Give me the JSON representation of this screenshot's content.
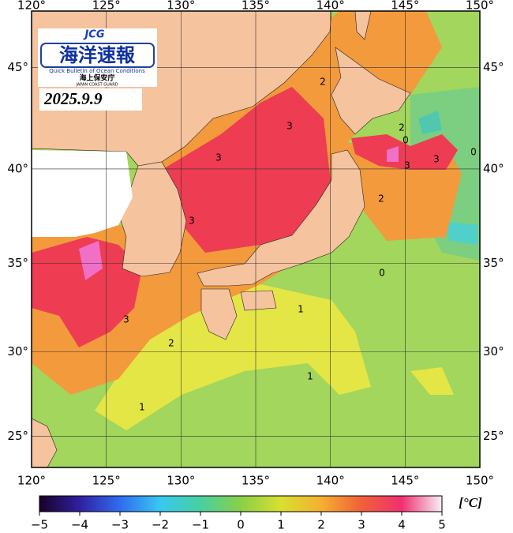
{
  "header": {
    "logo_mark": "JCG",
    "logo_title": "海洋速報",
    "logo_subtitle": "Quick Bulletin of Ocean Conditions",
    "logo_agency": "海上保安庁",
    "logo_agency_en": "JAPAN COAST GUARD",
    "date": "2025.9.9"
  },
  "map": {
    "projection": "mercator",
    "lonlim": [
      120,
      150
    ],
    "latlim": [
      23.1,
      47.6
    ],
    "grid": true,
    "lonticks": [
      {
        "value": 120,
        "label": "120°"
      },
      {
        "value": 125,
        "label": "125°"
      },
      {
        "value": 130,
        "label": "130°"
      },
      {
        "value": 135,
        "label": "135°"
      },
      {
        "value": 140,
        "label": "140°"
      },
      {
        "value": 145,
        "label": "145°"
      },
      {
        "value": 150,
        "label": "150°"
      }
    ],
    "latticks": [
      {
        "value": 25,
        "label": "25°"
      },
      {
        "value": 30,
        "label": "30°"
      },
      {
        "value": 35,
        "label": "35°"
      },
      {
        "value": 40,
        "label": "40°"
      },
      {
        "value": 45,
        "label": "45°"
      }
    ],
    "contour_labels": [
      "3",
      "3",
      "3",
      "3",
      "2",
      "2",
      "0",
      "0",
      "3",
      "3",
      "2",
      "0",
      "2",
      "1",
      "1",
      "1"
    ]
  },
  "colorbar": {
    "range": [
      -5,
      5
    ],
    "ticks": [
      {
        "value": -5,
        "label": "−5"
      },
      {
        "value": -4,
        "label": "−4"
      },
      {
        "value": -3,
        "label": "−3"
      },
      {
        "value": -2,
        "label": "−2"
      },
      {
        "value": -1,
        "label": "−1"
      },
      0,
      1,
      2,
      3,
      4,
      5
    ],
    "colors": [
      "#1a0028",
      "#3020a0",
      "#2f6cf0",
      "#38c8f0",
      "#48d0a0",
      "#88d048",
      "#d8e030",
      "#f4b030",
      "#f06038",
      "#f03070",
      "#f8f0f8"
    ],
    "unit": "[°C]"
  }
}
